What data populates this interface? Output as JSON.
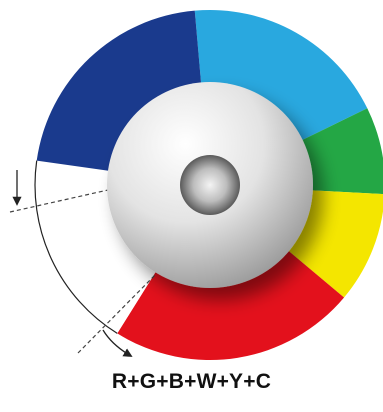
{
  "caption": "R+G+B+W+Y+C",
  "wheel": {
    "segments": [
      {
        "name": "cyan",
        "color": "#29a8df"
      },
      {
        "name": "green",
        "color": "#24a745"
      },
      {
        "name": "yellow",
        "color": "#f4e600"
      },
      {
        "name": "red",
        "color": "#e3111c"
      },
      {
        "name": "white",
        "color": "#ffffff"
      },
      {
        "name": "blue",
        "color": "#1a3a8d"
      }
    ],
    "hub_color": "#cccccc",
    "arrow_color": "#222222"
  }
}
